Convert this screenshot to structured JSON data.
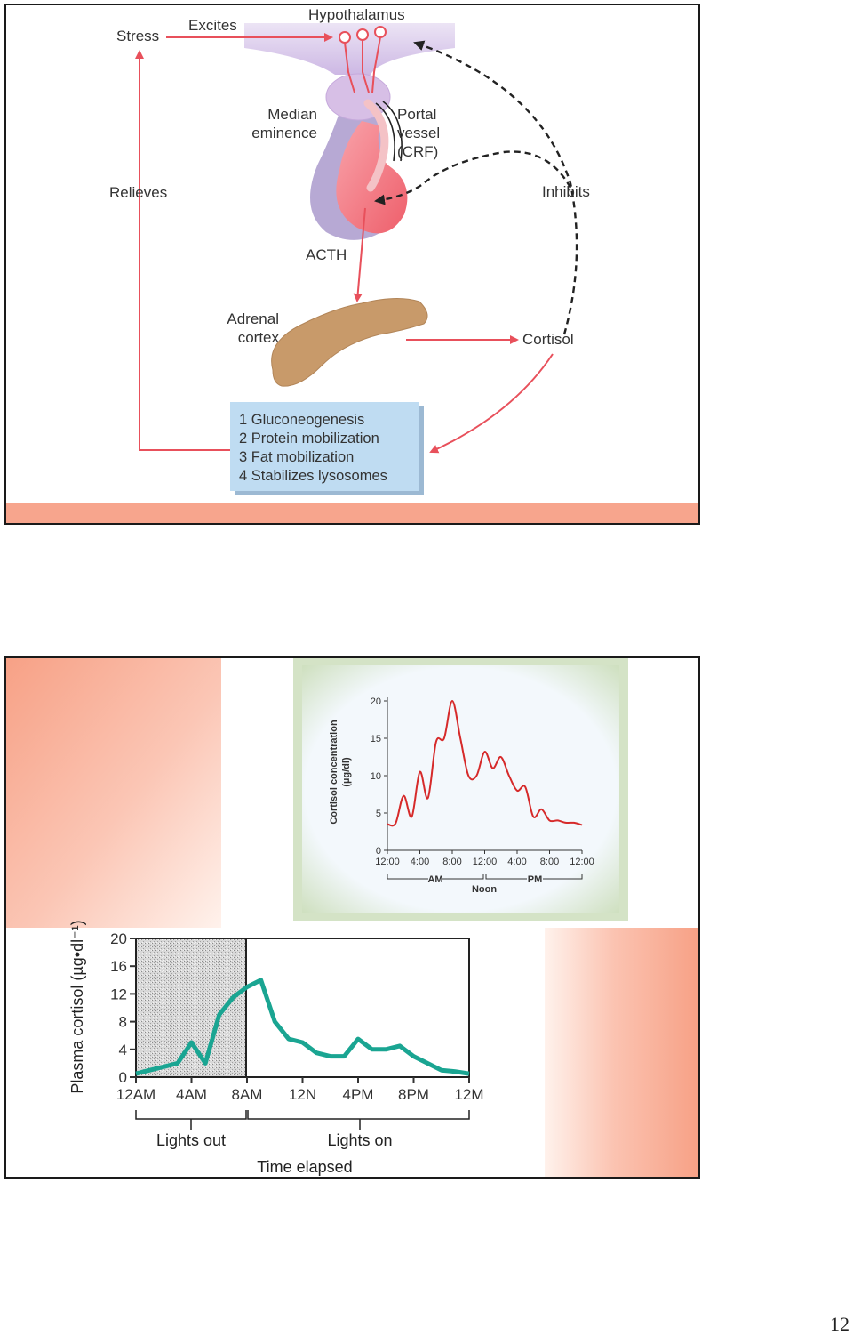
{
  "slide1": {
    "labels": {
      "stress": "Stress",
      "excites": "Excites",
      "hypothalamus": "Hypothalamus",
      "median_eminence": [
        "Median",
        "eminence"
      ],
      "portal_vessel": [
        "Portal",
        "vessel",
        "(CRF)"
      ],
      "relieves": "Relieves",
      "inhibits": "Inhibits",
      "acth": "ACTH",
      "adrenal_cortex": [
        "Adrenal",
        "cortex"
      ],
      "cortisol": "Cortisol"
    },
    "effects": [
      "1 Gluconeogenesis",
      "2 Protein mobilization",
      "3 Fat mobilization",
      "4 Stabilizes lysosomes"
    ],
    "colors": {
      "arrow": "#e8505b",
      "pituitary": "#f06f78",
      "hypothalamus": "#d9c8ea",
      "adrenal": "#c89a6a",
      "effects_box": "#bfdcf2",
      "accent_bar": "#f7a58d"
    }
  },
  "slide2": {
    "top_chart": {
      "ylabel": [
        "Cortisol concentration",
        "(µg/dl)"
      ],
      "y_ticks": [
        "0",
        "5",
        "10",
        "15",
        "20"
      ],
      "x_ticks": [
        "12:00",
        "4:00",
        "8:00",
        "12:00",
        "4:00",
        "8:00",
        "12:00"
      ],
      "period_labels": [
        "AM",
        "PM"
      ],
      "noon_label": "Noon",
      "line_color": "#d62a2a",
      "frame_color": "#d4e3c6"
    },
    "bottom_chart": {
      "ylabel": "Plasma cortisol (µg•dl⁻¹)",
      "y_ticks": [
        "0",
        "4",
        "8",
        "12",
        "16",
        "20"
      ],
      "x_ticks": [
        "12AM",
        "4AM",
        "8AM",
        "12N",
        "4PM",
        "8PM",
        "12M"
      ],
      "lights_out": "Lights out",
      "lights_on": "Lights on",
      "xlabel": "Time elapsed",
      "line_color": "#1aa592",
      "shade_color": "#cfcfcf"
    }
  },
  "chart_data": [
    {
      "type": "line",
      "title": "",
      "xlabel": "",
      "ylabel": "Cortisol concentration (µg/dl)",
      "x": [
        "12:00",
        "1:00",
        "2:00",
        "3:00",
        "4:00",
        "5:00",
        "6:00",
        "7:00",
        "8:00",
        "9:00",
        "10:00",
        "11:00",
        "12:00",
        "1:00",
        "2:00",
        "3:00",
        "4:00",
        "5:00",
        "6:00",
        "7:00",
        "8:00",
        "9:00",
        "10:00",
        "11:00",
        "12:00"
      ],
      "series": [
        {
          "values": [
            3.5,
            3.6,
            7.3,
            4.5,
            10.5,
            7.0,
            14.5,
            15.0,
            20.0,
            15.0,
            10.0,
            10.0,
            13.2,
            11.0,
            12.5,
            10.0,
            8.0,
            8.5,
            4.5,
            5.5,
            4.0,
            4.0,
            3.7,
            3.7,
            3.4
          ]
        }
      ],
      "ylim": [
        0,
        20
      ],
      "grid": false
    },
    {
      "type": "line",
      "title": "",
      "xlabel": "Time elapsed",
      "ylabel": "Plasma cortisol (µg•dl⁻¹)",
      "x": [
        "12AM",
        "1AM",
        "2AM",
        "3AM",
        "4AM",
        "5AM",
        "6AM",
        "7AM",
        "8AM",
        "9AM",
        "10AM",
        "11AM",
        "12N",
        "1PM",
        "2PM",
        "3PM",
        "4PM",
        "5PM",
        "6PM",
        "7PM",
        "8PM",
        "9PM",
        "10PM",
        "11PM",
        "12M"
      ],
      "series": [
        {
          "values": [
            0.5,
            1.0,
            1.5,
            2.0,
            5.0,
            2.0,
            9.0,
            11.5,
            13.0,
            14.0,
            8.0,
            5.5,
            5.0,
            3.5,
            3.0,
            3.0,
            5.5,
            4.0,
            4.0,
            4.5,
            3.0,
            2.0,
            1.0,
            0.8,
            0.5
          ]
        }
      ],
      "ylim": [
        0,
        20
      ],
      "grid": false
    }
  ],
  "page_number": "12"
}
